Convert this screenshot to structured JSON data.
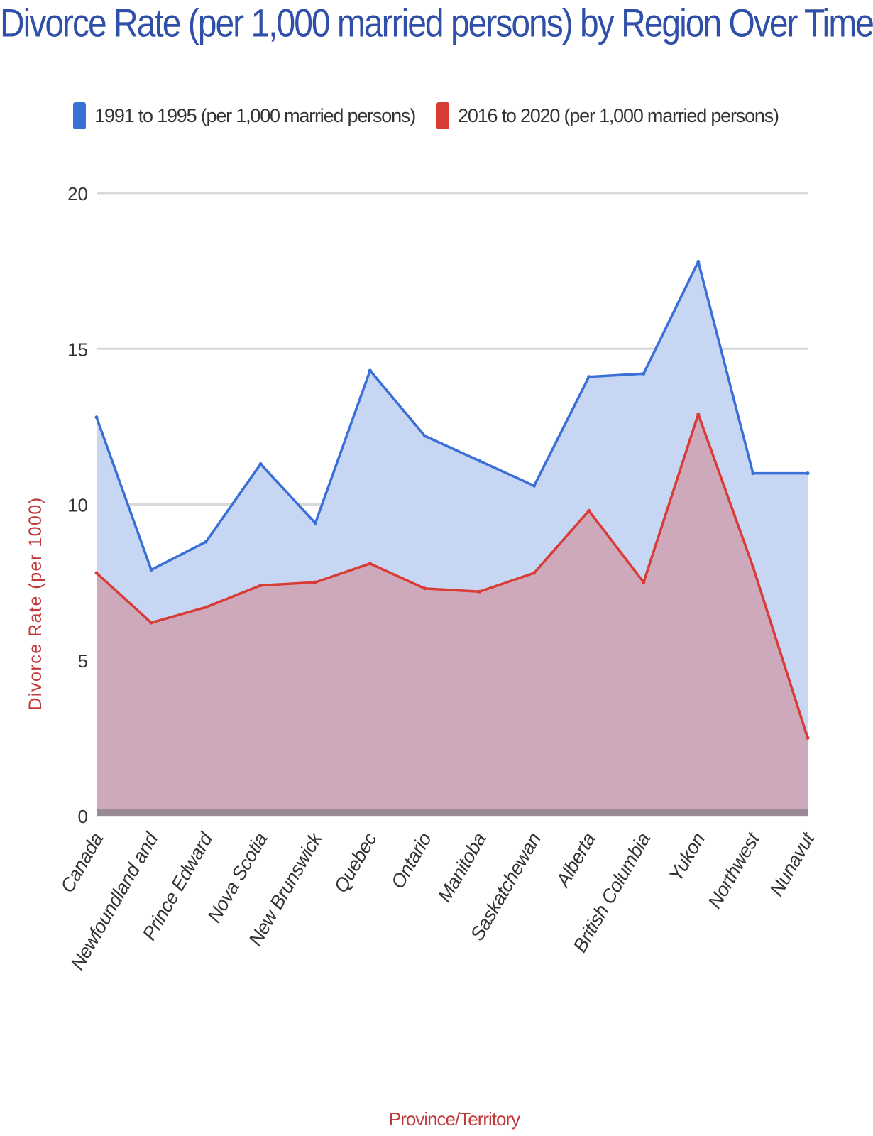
{
  "chart_data": {
    "type": "area",
    "title": "Divorce Rate (per 1,000 married persons) by Region Over Time",
    "xlabel": "Province/Territory",
    "ylabel": "Divorce Rate (per 1000)",
    "ylim": [
      0,
      20
    ],
    "yticks": [
      0,
      5,
      10,
      15,
      20
    ],
    "grid": true,
    "legend_position": "top",
    "categories": [
      "Canada",
      "Newfoundland and",
      "Prince Edward",
      "Nova Scotia",
      "New Brunswick",
      "Quebec",
      "Ontario",
      "Manitoba",
      "Saskatchewan",
      "Alberta",
      "British Columbia",
      "Yukon",
      "Northwest",
      "Nunavut"
    ],
    "series": [
      {
        "name": "1991 to 1995 (per 1,000 married persons)",
        "color": "#3b6fd8",
        "fill": "#c6d6f3",
        "values": [
          12.8,
          7.9,
          8.8,
          11.3,
          9.4,
          14.3,
          12.2,
          11.4,
          10.6,
          14.1,
          14.2,
          17.8,
          11.0,
          11.0
        ]
      },
      {
        "name": "2016 to 2020 (per 1,000 married persons)",
        "color": "#d93b35",
        "fill": "#cfa6b8",
        "values": [
          7.8,
          6.2,
          6.7,
          7.4,
          7.5,
          8.1,
          7.3,
          7.2,
          7.8,
          9.8,
          7.5,
          12.9,
          8.0,
          2.5
        ]
      }
    ],
    "title_color": "#2f4fa8",
    "ylabel_color": "#c0393b",
    "xlabel_color": "#c0393b"
  }
}
